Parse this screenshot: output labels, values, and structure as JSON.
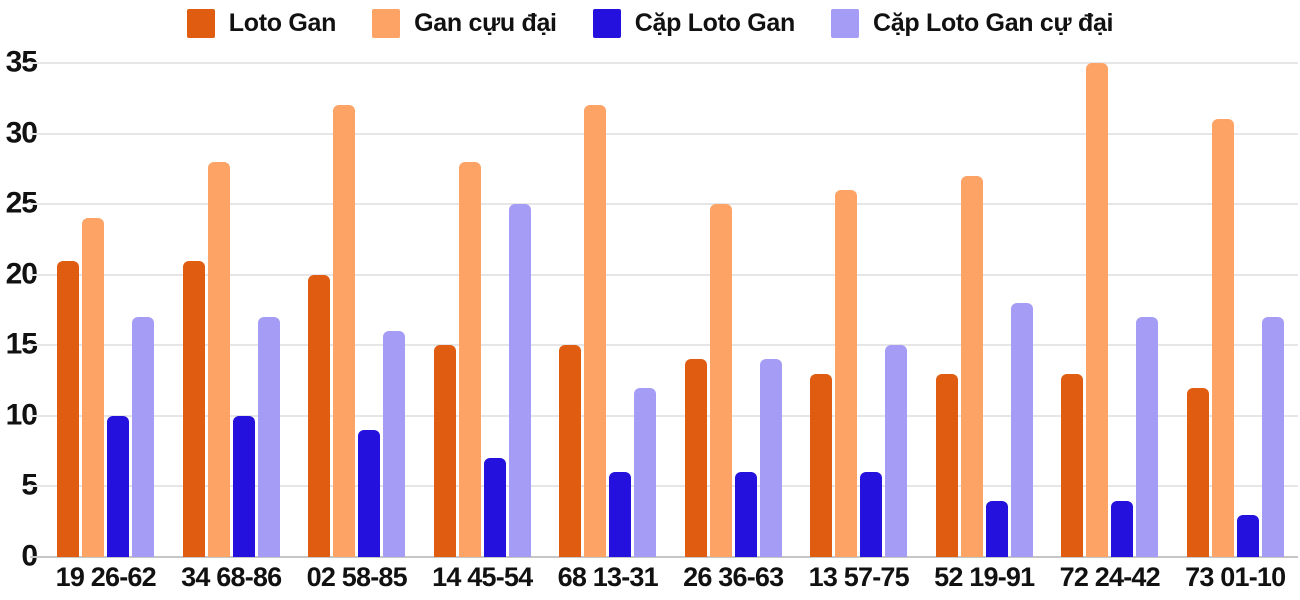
{
  "colors": {
    "background": "#FFFFFF",
    "text": "#111111",
    "gridline": "#E6E6E6",
    "axis_line": "#C6C6C6"
  },
  "chart_data": {
    "type": "bar",
    "title": "",
    "xlabel": "",
    "ylabel": "",
    "ylim": [
      0,
      35
    ],
    "yticks": [
      0,
      5,
      10,
      15,
      20,
      25,
      30,
      35
    ],
    "grid": true,
    "legend_position": "top",
    "categories": [
      "19 26-62",
      "34 68-86",
      "02 58-85",
      "14 45-54",
      "68 13-31",
      "26 36-63",
      "13 57-75",
      "52 19-91",
      "72 24-42",
      "73 01-10"
    ],
    "series": [
      {
        "key": "loto-gan",
        "name": "Loto Gan",
        "color": "#E05C10",
        "values": [
          21,
          21,
          20,
          15,
          15,
          14,
          13,
          13,
          13,
          12
        ]
      },
      {
        "key": "gan-cuu-dai",
        "name": "Gan cựu đại",
        "color": "#FCA365",
        "values": [
          24,
          28,
          32,
          28,
          32,
          25,
          26,
          27,
          35,
          31
        ]
      },
      {
        "key": "cap-loto-gan",
        "name": "Cặp Loto Gan",
        "color": "#2411DD",
        "values": [
          10,
          10,
          9,
          7,
          6,
          6,
          6,
          4,
          4,
          3
        ]
      },
      {
        "key": "cap-loto-gan-cu-dai",
        "name": "Cặp Loto Gan cự đại",
        "color": "#A49CF5",
        "values": [
          17,
          17,
          16,
          25,
          12,
          14,
          15,
          18,
          17,
          17
        ]
      }
    ]
  }
}
